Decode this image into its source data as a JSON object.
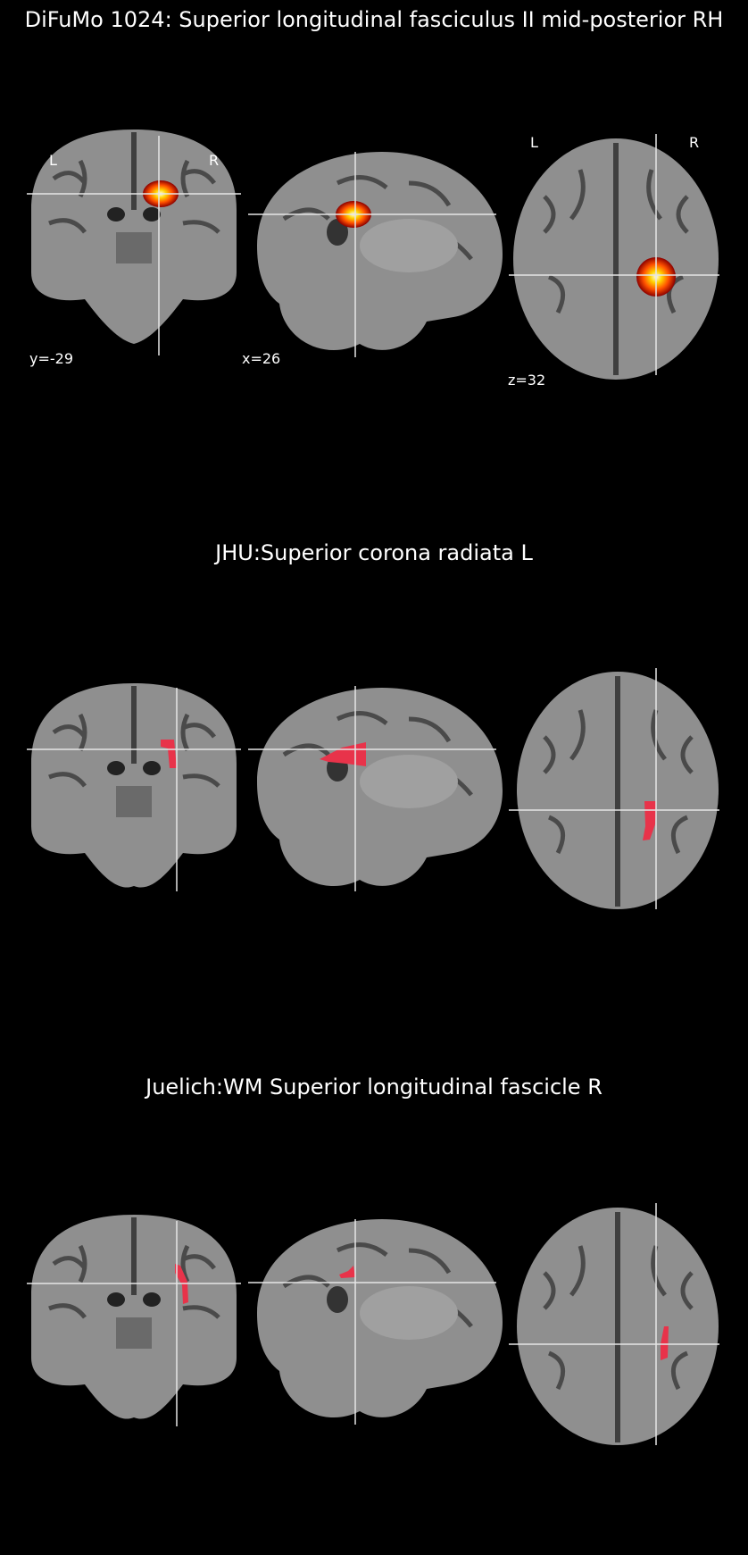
{
  "panels": [
    {
      "title": "DiFuMo 1024: Superior longitudinal fasciculus II mid-posterior RH",
      "overlay": "hot-blob",
      "orientation_labels": {
        "left": "L",
        "right": "R"
      },
      "coords": {
        "y": "y=-29",
        "x": "x=26",
        "z": "z=32"
      }
    },
    {
      "title": "JHU:Superior corona radiata L",
      "overlay": "red-mask"
    },
    {
      "title": "Juelich:WM Superior longitudinal fascicle R",
      "overlay": "red-mask"
    }
  ],
  "colors": {
    "background": "#000000",
    "brain_gray": "#8f8f8f",
    "sulcus": "#3f3f3f",
    "crosshair": "#e6e6e6",
    "mask_red": "#e8334a",
    "hot_outer": "#8b0000",
    "hot_mid": "#ff5000",
    "hot_inner": "#ffd200",
    "hot_core": "#ffffe0"
  }
}
